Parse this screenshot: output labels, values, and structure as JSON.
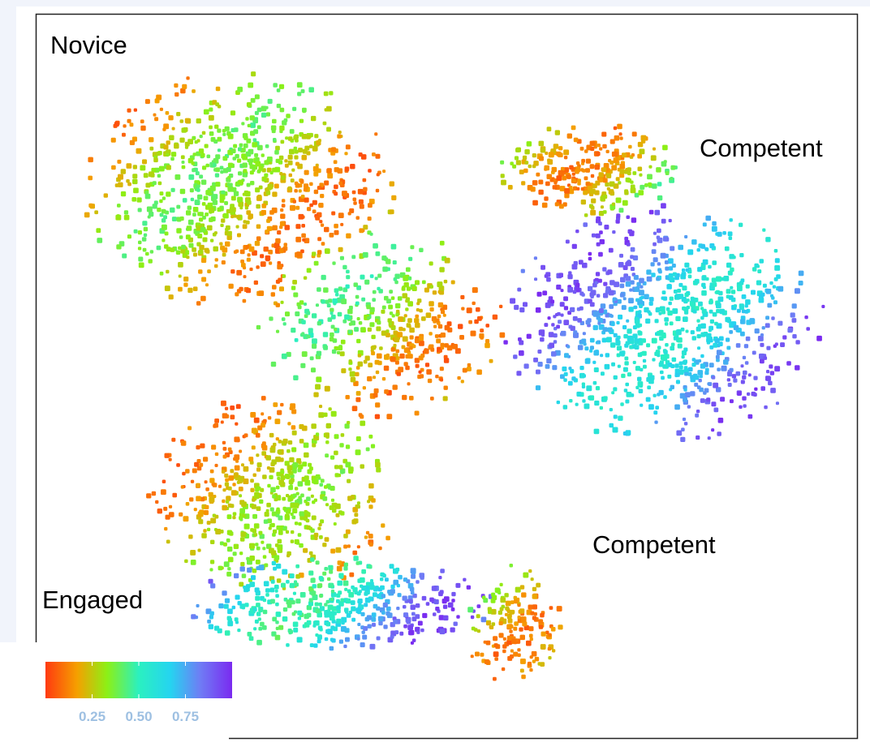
{
  "chart_data": {
    "type": "scatter",
    "title": "",
    "xlabel": "",
    "ylabel": "",
    "grid": false,
    "point_count": 3500,
    "color_scale": {
      "name": "rainbow",
      "stops": [
        "#ff3a10",
        "#f5a000",
        "#8cf016",
        "#2bf0c0",
        "#25d4f0",
        "#6f7cf5",
        "#7a2af0"
      ],
      "range": [
        0,
        1
      ],
      "ticks": [
        0.25,
        0.5,
        0.75
      ],
      "tick_labels": [
        "0.25",
        "0.50",
        "0.75"
      ],
      "tick_color": "#9ec0e2",
      "placement": "bottom-left"
    },
    "annotations": [
      {
        "text": "Novice",
        "location": "top-left"
      },
      {
        "text": "Competent",
        "location": "top-right"
      },
      {
        "text": "Competent",
        "location": "lower-right"
      },
      {
        "text": "Engaged",
        "location": "lower-left"
      }
    ],
    "clusters": [
      {
        "region": "upper-left lobe",
        "value_range": [
          0.08,
          0.4
        ]
      },
      {
        "region": "center",
        "value_range": [
          0.08,
          0.45
        ]
      },
      {
        "region": "upper-right ridge",
        "value_range": [
          0.1,
          0.55
        ]
      },
      {
        "region": "right",
        "value_range": [
          0.55,
          0.95
        ]
      },
      {
        "region": "lower-left",
        "value_range": [
          0.08,
          0.35
        ]
      },
      {
        "region": "bottom",
        "value_range": [
          0.45,
          0.95
        ]
      },
      {
        "region": "tail",
        "value_range": [
          0.1,
          0.65
        ]
      }
    ]
  }
}
